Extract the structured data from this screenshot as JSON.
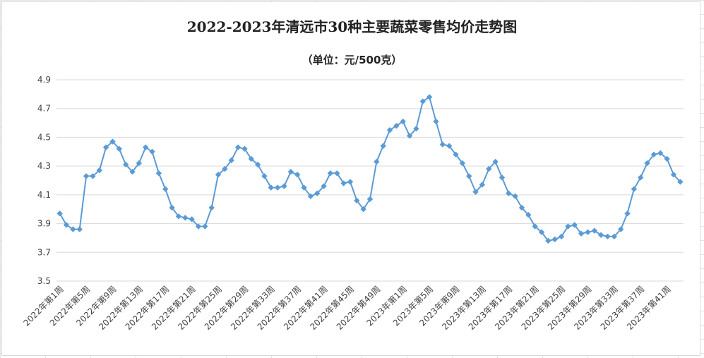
{
  "chart_data": {
    "type": "line",
    "title": "2022-2023年清远市30种主要蔬菜零售均价走势图",
    "subtitle": "（单位：元/500克）",
    "xlabel": "",
    "ylabel": "",
    "ylim": [
      3.5,
      4.9
    ],
    "yticks": [
      "3.5",
      "3.7",
      "3.9",
      "4.1",
      "4.3",
      "4.5",
      "4.7",
      "4.9"
    ],
    "grid": true,
    "legend": "none",
    "color": "#5b9bd5",
    "xtick_labels": [
      "2022年第1周",
      "2022年第5周",
      "2022年第9周",
      "2022年第13周",
      "2022年第17周",
      "2022年第21周",
      "2022年第25周",
      "2022年第29周",
      "2022年第33周",
      "2022年第37周",
      "2022年第41周",
      "2022年第45周",
      "2022年第49周",
      "2023年第1周",
      "2023年第5周",
      "2023年第9周",
      "2023年第13周",
      "2023年第17周",
      "2023年第21周",
      "2023年第25周",
      "2023年第29周",
      "2023年第33周",
      "2023年第37周",
      "2023年第41周"
    ],
    "series": [
      {
        "values": [
          3.97,
          3.89,
          3.86,
          3.86,
          4.23,
          4.23,
          4.27,
          4.43,
          4.47,
          4.42,
          4.31,
          4.26,
          4.32,
          4.43,
          4.4,
          4.25,
          4.14,
          4.01,
          3.95,
          3.94,
          3.93,
          3.88,
          3.88,
          4.01,
          4.24,
          4.28,
          4.34,
          4.43,
          4.42,
          4.35,
          4.31,
          4.23,
          4.15,
          4.15,
          4.16,
          4.26,
          4.24,
          4.15,
          4.09,
          4.11,
          4.16,
          4.25,
          4.25,
          4.18,
          4.19,
          4.06,
          4.0,
          4.07,
          4.33,
          4.44,
          4.55,
          4.58,
          4.61,
          4.51,
          4.56,
          4.75,
          4.78,
          4.61,
          4.45,
          4.44,
          4.38,
          4.32,
          4.23,
          4.12,
          4.17,
          4.28,
          4.33,
          4.22,
          4.11,
          4.09,
          4.01,
          3.96,
          3.88,
          3.84,
          3.78,
          3.79,
          3.81,
          3.88,
          3.89,
          3.83,
          3.84,
          3.85,
          3.82,
          3.81,
          3.81,
          3.86,
          3.97,
          4.14,
          4.22,
          4.32,
          4.38,
          4.39,
          4.35,
          4.24,
          4.19
        ]
      }
    ]
  }
}
